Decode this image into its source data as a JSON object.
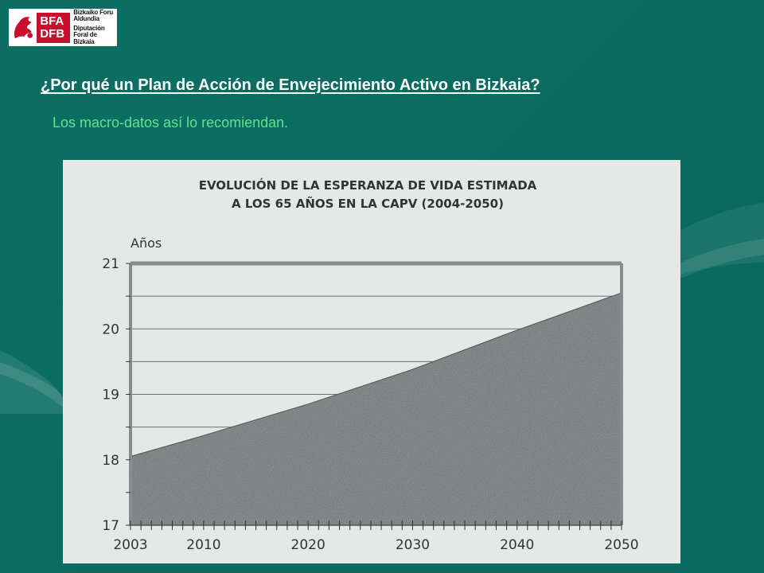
{
  "logo": {
    "letters_top": "BFA",
    "letters_bottom": "DFB",
    "line1": "Bizkaiko Foru",
    "line2": "Aldundia",
    "line3": "Diputación",
    "line4": "Foral de Bizkaia"
  },
  "header": {
    "title": "¿Por qué un Plan de Acción de Envejecimiento Activo en Bizkaia?",
    "subtitle": "Los macro-datos así lo recomiendan."
  },
  "colors": {
    "background": "#0b6b60",
    "subtitle": "#66e08a",
    "logo_red": "#c8102e",
    "chart_bg": "#e6e8e8",
    "area_fill": "#8e8f91"
  },
  "chart_data": {
    "type": "area",
    "title_line1": "EVOLUCIÓN DE LA ESPERANZA DE VIDA ESTIMADA",
    "title_line2": "A LOS 65 AÑOS EN LA CAPV (2004-2050)",
    "ylabel": "Años",
    "xlabel": "",
    "x_tick_labels": [
      "2003",
      "2010",
      "2020",
      "2030",
      "2040",
      "2050"
    ],
    "x_tick_years": [
      2003,
      2010,
      2020,
      2030,
      2040,
      2050
    ],
    "y_ticks": [
      17,
      18,
      19,
      20,
      21
    ],
    "xlim": [
      2003,
      2050
    ],
    "ylim": [
      17,
      21
    ],
    "grid": "horizontal",
    "x": [
      2003,
      2010,
      2020,
      2030,
      2040,
      2050
    ],
    "values": [
      18.05,
      18.37,
      18.85,
      19.38,
      19.98,
      20.55
    ]
  }
}
